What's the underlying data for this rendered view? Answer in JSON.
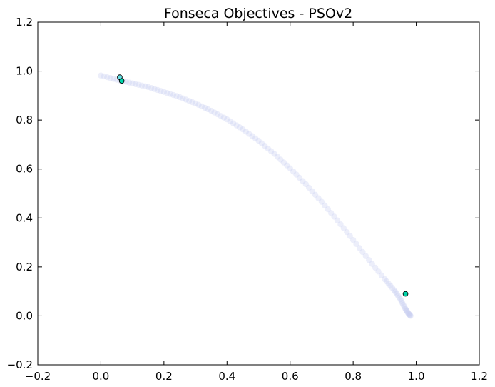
{
  "chart_data": {
    "type": "scatter",
    "title": "Fonseca Objectives - PSOv2",
    "xlabel": "",
    "ylabel": "",
    "xlim": [
      -0.2,
      1.2
    ],
    "ylim": [
      -0.2,
      1.2
    ],
    "x_ticks": [
      -0.2,
      0.0,
      0.2,
      0.4,
      0.6,
      0.8,
      1.0,
      1.2
    ],
    "y_ticks": [
      -0.2,
      0.0,
      0.2,
      0.4,
      0.6,
      0.8,
      1.0,
      1.2
    ],
    "x_tick_labels": [
      "−0.2",
      "0.0",
      "0.2",
      "0.4",
      "0.6",
      "0.8",
      "1.0",
      "1.2"
    ],
    "y_tick_labels": [
      "−0.2",
      "0.0",
      "0.2",
      "0.4",
      "0.6",
      "0.8",
      "1.0",
      "1.2"
    ],
    "grid": false,
    "legend": "none",
    "colors": {
      "front": "#c8cdf0",
      "point_light": "#66e0e6",
      "point_dark": "#00d4aa",
      "point_edge": "#000000",
      "axes": "#000000"
    },
    "series": [
      {
        "role": "pareto-front",
        "points": [
          {
            "x": 0.0,
            "y": 0.982
          },
          {
            "x": 0.05,
            "y": 0.965
          },
          {
            "x": 0.1,
            "y": 0.95
          },
          {
            "x": 0.15,
            "y": 0.935
          },
          {
            "x": 0.2,
            "y": 0.915
          },
          {
            "x": 0.25,
            "y": 0.894
          },
          {
            "x": 0.3,
            "y": 0.868
          },
          {
            "x": 0.35,
            "y": 0.838
          },
          {
            "x": 0.4,
            "y": 0.803
          },
          {
            "x": 0.45,
            "y": 0.762
          },
          {
            "x": 0.5,
            "y": 0.716
          },
          {
            "x": 0.55,
            "y": 0.662
          },
          {
            "x": 0.6,
            "y": 0.603
          },
          {
            "x": 0.65,
            "y": 0.538
          },
          {
            "x": 0.7,
            "y": 0.466
          },
          {
            "x": 0.75,
            "y": 0.39
          },
          {
            "x": 0.8,
            "y": 0.31
          },
          {
            "x": 0.85,
            "y": 0.228
          },
          {
            "x": 0.9,
            "y": 0.15
          },
          {
            "x": 0.93,
            "y": 0.105
          },
          {
            "x": 0.95,
            "y": 0.068
          },
          {
            "x": 0.965,
            "y": 0.03
          },
          {
            "x": 0.975,
            "y": 0.01
          },
          {
            "x": 0.982,
            "y": 0.0
          }
        ]
      },
      {
        "role": "solutions",
        "points": [
          {
            "x": 0.06,
            "y": 0.975,
            "shade": "light"
          },
          {
            "x": 0.066,
            "y": 0.96,
            "shade": "dark"
          },
          {
            "x": 0.966,
            "y": 0.09,
            "shade": "dark"
          }
        ]
      }
    ]
  }
}
